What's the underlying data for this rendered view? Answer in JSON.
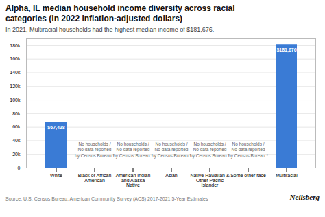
{
  "chart_data": {
    "type": "bar",
    "title": "Alpha, IL median household income diversity across racial\ncategories (in 2022 inflation-adjusted dollars)",
    "subtitle": "In 2021, Multiracial households had the highest median income of $181,676.",
    "categories": [
      "White",
      "Black or African\nAmerican",
      "American Indian\nand Alaska\nNative",
      "Asian",
      "Native Hawaiian &\nOther Pacific\nIslander",
      "Some other race",
      "Multiracial"
    ],
    "values": [
      67428,
      0,
      0,
      0,
      0,
      0,
      181676
    ],
    "value_labels": [
      "$67,428",
      null,
      null,
      null,
      null,
      null,
      "$181,676"
    ],
    "data_labels": true,
    "color": "#3a7bd5",
    "annotations": [
      {
        "category": "Black or African\nAmerican",
        "text": "No households /\nNo data reported\nby Census Bureau.*"
      },
      {
        "category": "American Indian\nand Alaska\nNative",
        "text": "No households /\nNo data reported\nby Census Bureau.*"
      },
      {
        "category": "Asian",
        "text": "No households /\nNo data reported\nby Census Bureau.*"
      },
      {
        "category": "Native Hawaiian &\nOther Pacific\nIslander",
        "text": "No households /\nNo data reported\nby Census Bureau.*"
      },
      {
        "category": "Some other race",
        "text": "No households /\nNo data reported\nby Census Bureau.*"
      }
    ],
    "source": "Source: U.S. Census Bureau, American Community Survey (ACS) 2017-2021 5-Year Estimates",
    "brand": "Neilsberg",
    "ylim": [
      0,
      190000
    ],
    "yticks": [
      0,
      {
        "value": 20000,
        "label": "20k"
      },
      {
        "value": 40000,
        "label": "40k"
      },
      {
        "value": 60000,
        "label": "60k"
      },
      {
        "value": 80000,
        "label": "80k"
      },
      {
        "value": 100000,
        "label": "100k"
      },
      {
        "value": 120000,
        "label": "120k"
      },
      {
        "value": 140000,
        "label": "140k"
      },
      {
        "value": 160000,
        "label": "160k"
      },
      {
        "value": 180000,
        "label": "180k"
      }
    ],
    "grid": true
  }
}
